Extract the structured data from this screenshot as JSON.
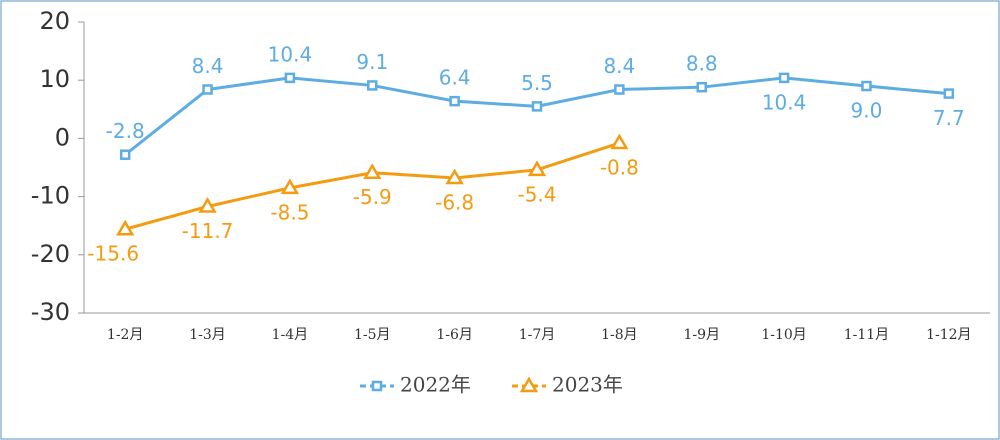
{
  "chart_data": {
    "type": "line",
    "categories": [
      "1-2月",
      "1-3月",
      "1-4月",
      "1-5月",
      "1-6月",
      "1-7月",
      "1-8月",
      "1-9月",
      "1-10月",
      "1-11月",
      "1-12月"
    ],
    "series": [
      {
        "name": "2022年",
        "color": "#5dade2",
        "marker": "square",
        "values": [
          -2.8,
          8.4,
          10.4,
          9.1,
          6.4,
          5.5,
          8.4,
          8.8,
          10.4,
          9.0,
          7.7
        ],
        "value_labels": [
          "-2.8",
          "8.4",
          "10.4",
          "9.1",
          "6.4",
          "5.5",
          "8.4",
          "8.8",
          "10.4",
          "9.0",
          "7.7"
        ]
      },
      {
        "name": "2023年",
        "color": "#f39c12",
        "marker": "triangle",
        "values": [
          -15.6,
          -11.7,
          -8.5,
          -5.9,
          -6.8,
          -5.4,
          -0.8,
          null,
          null,
          null,
          null
        ],
        "value_labels": [
          "-15.6",
          "-11.7",
          "-8.5",
          "-5.9",
          "-6.8",
          "-5.4",
          "-0.8",
          null,
          null,
          null,
          null
        ]
      }
    ],
    "ylim": [
      -30,
      20
    ],
    "yticks": [
      -30,
      -20,
      -10,
      0,
      10,
      20
    ]
  }
}
